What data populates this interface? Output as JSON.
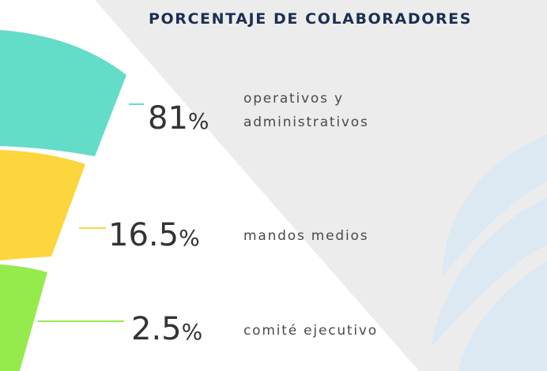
{
  "header": {
    "title": "PORCENTAJE DE COLABORADORES"
  },
  "items": [
    {
      "value": "81",
      "unit": "%",
      "label_lines": [
        "operativos y",
        "administrativos"
      ]
    },
    {
      "value": "16.5",
      "unit": "%",
      "label_lines": [
        "mandos medios"
      ]
    },
    {
      "value": "2.5",
      "unit": "%",
      "label_lines": [
        "comité ejecutivo"
      ]
    }
  ]
}
